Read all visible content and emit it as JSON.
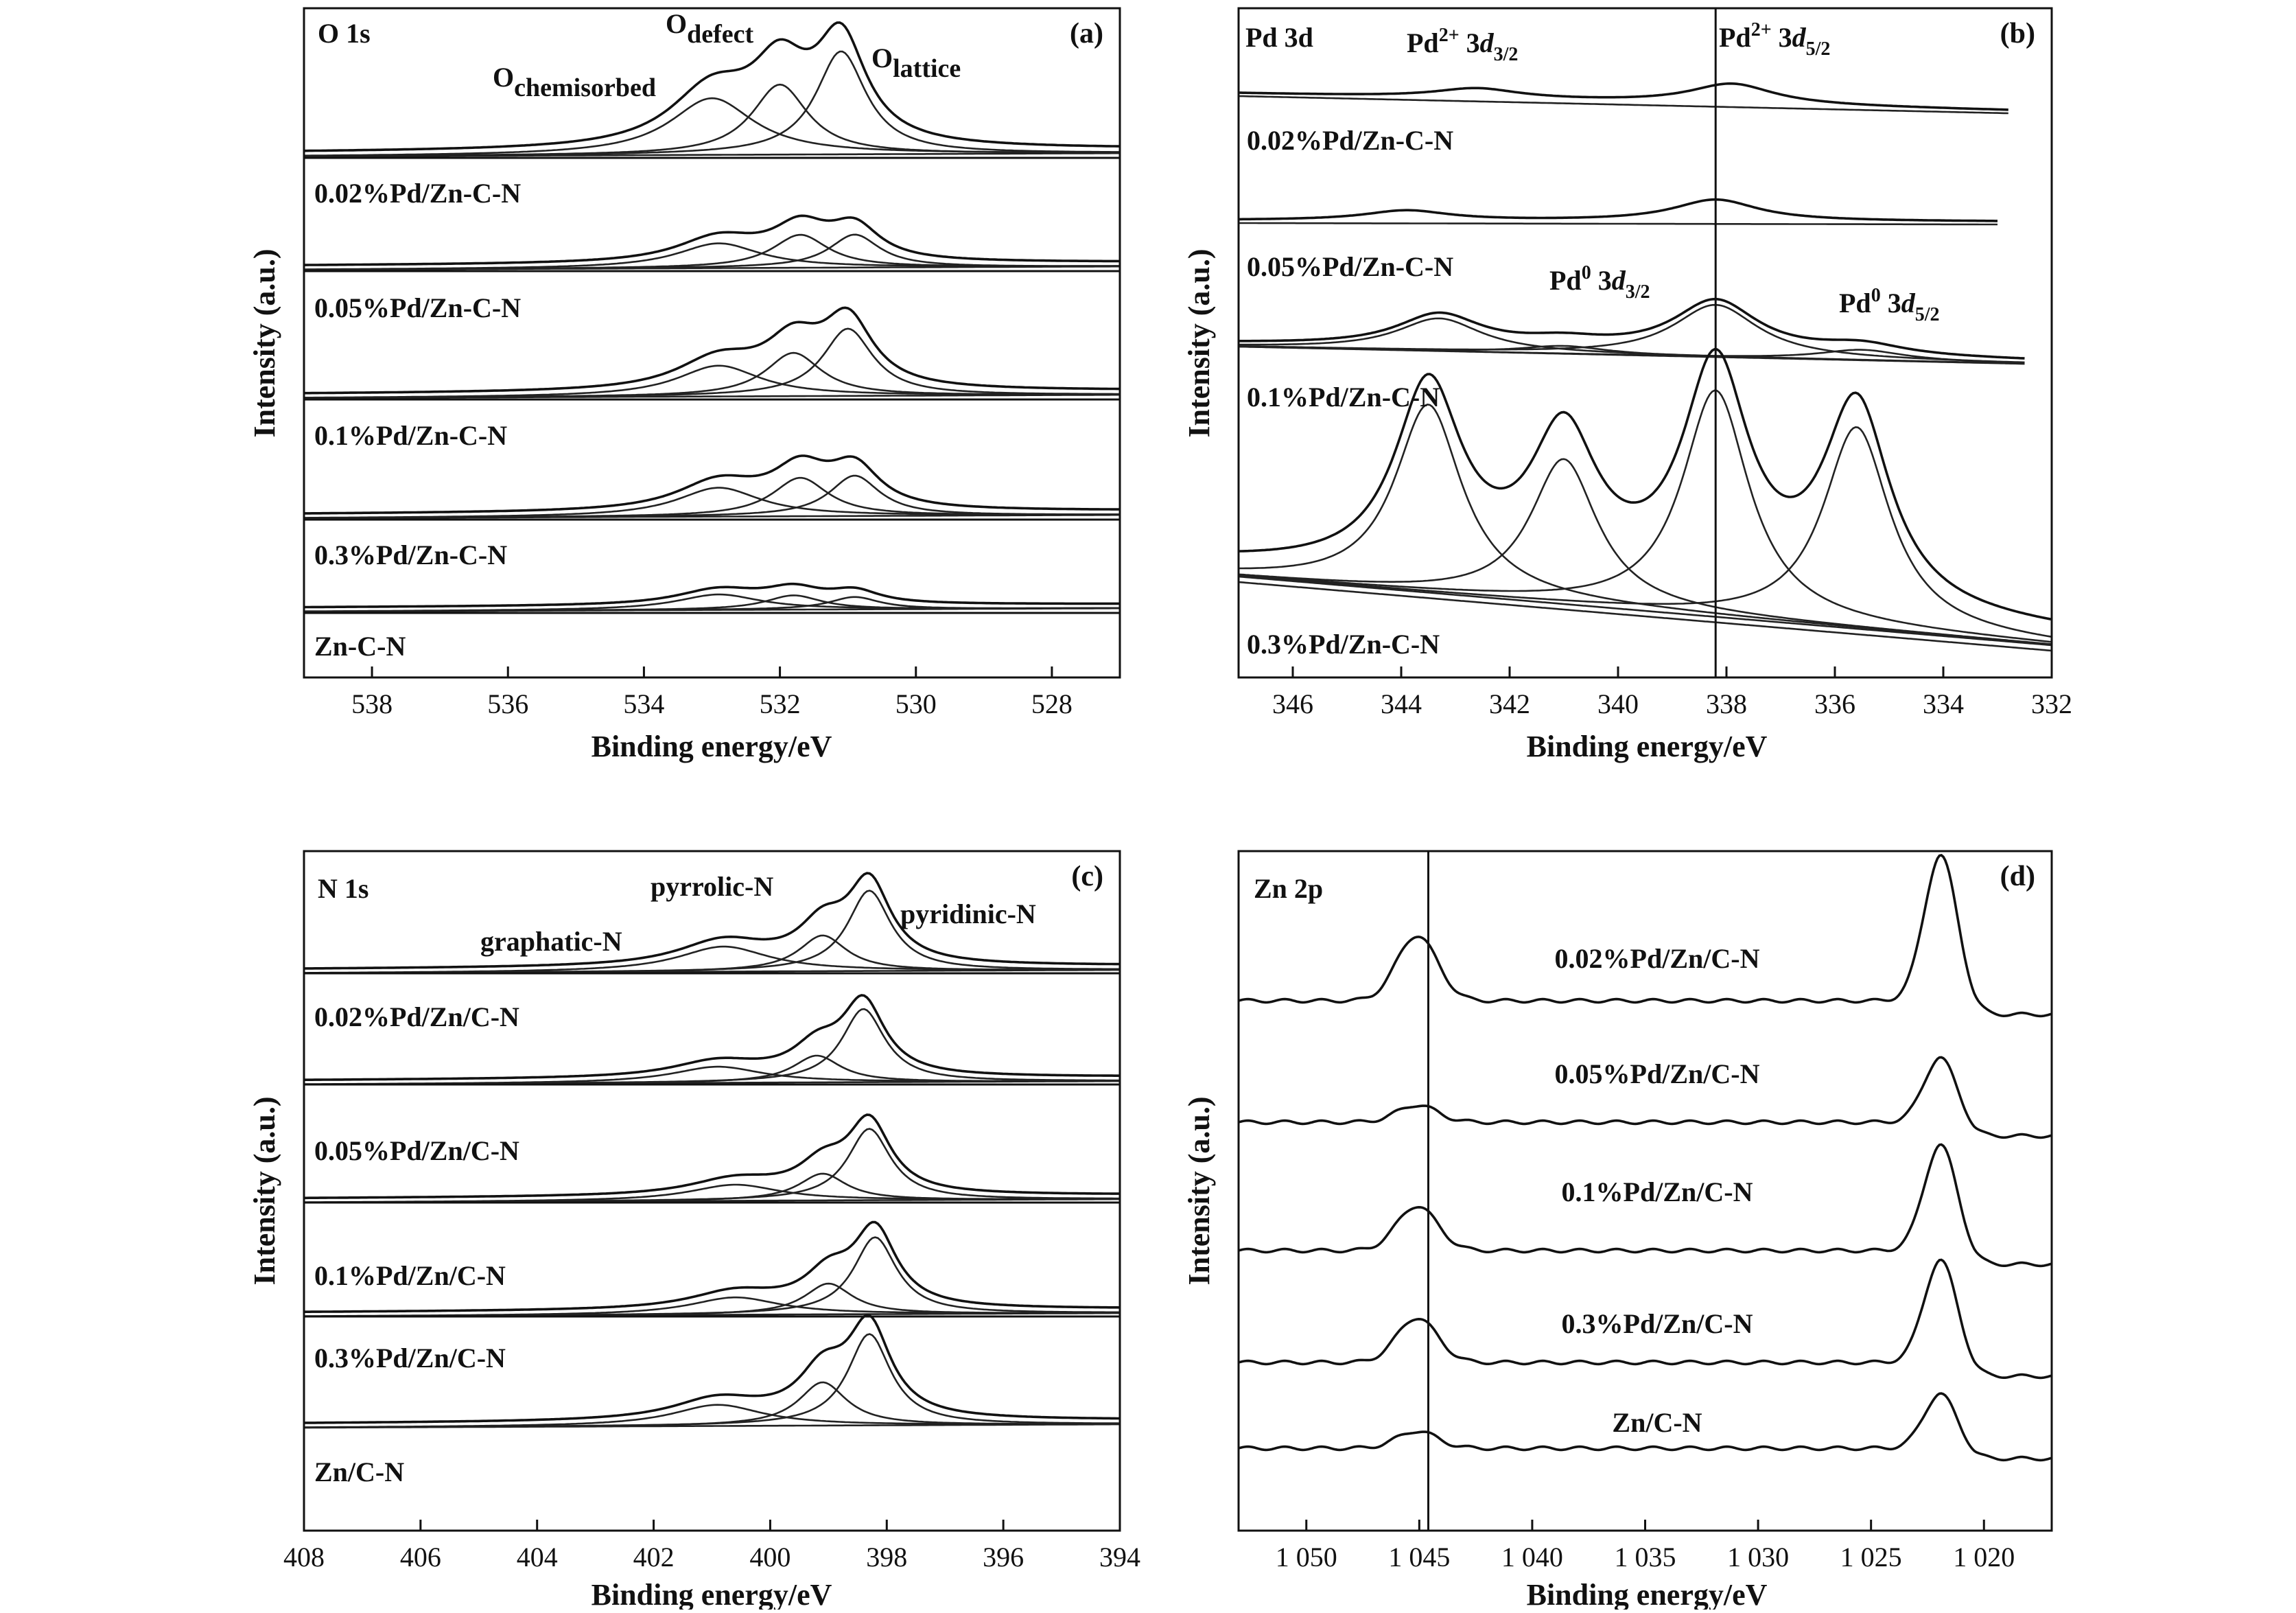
{
  "chart_data": [
    {
      "panel": "(a)",
      "type": "line",
      "label": "O 1s",
      "xlabel": "Binding energy/eV",
      "ylabel": "Intensity (a.u.)",
      "xlim": [
        539,
        527
      ],
      "xticks": [
        "538",
        "536",
        "534",
        "532",
        "530",
        "528"
      ],
      "xtick_values": [
        538,
        536,
        534,
        532,
        530,
        528
      ],
      "peaks": [
        "Ochemisorbed",
        "Odefect",
        "Olattice"
      ],
      "series": [
        {
          "name": "0.02%Pd/Zn-C-N",
          "centers": [
            533.0,
            532.0,
            531.1
          ],
          "amplitudes": [
            0.55,
            0.68,
            1.0
          ]
        },
        {
          "name": "0.05%Pd/Zn-C-N",
          "centers": [
            532.9,
            531.7,
            530.9
          ],
          "amplitudes": [
            0.3,
            0.4,
            0.4
          ]
        },
        {
          "name": "0.1%Pd/Zn-C-N",
          "centers": [
            532.9,
            531.8,
            531.0
          ],
          "amplitudes": [
            0.32,
            0.45,
            0.7
          ]
        },
        {
          "name": "0.3%Pd/Zn-C-N",
          "centers": [
            532.9,
            531.7,
            530.9
          ],
          "amplitudes": [
            0.3,
            0.4,
            0.42
          ]
        },
        {
          "name": "Zn-C-N",
          "centers": [
            532.9,
            531.8,
            530.9
          ],
          "amplitudes": [
            0.25,
            0.23,
            0.2
          ]
        }
      ]
    },
    {
      "panel": "(b)",
      "type": "line",
      "label": "Pd 3d",
      "xlabel": "Binding energy/eV",
      "ylabel": "Intensity (a.u.)",
      "xlim": [
        347,
        332
      ],
      "xticks": [
        "346",
        "344",
        "342",
        "340",
        "338",
        "336",
        "334",
        "332"
      ],
      "xtick_values": [
        346,
        344,
        342,
        340,
        338,
        336,
        334,
        332
      ],
      "reference_line": 338.2,
      "peaks": [
        "Pd2+ 3d3/2",
        "Pd2+ 3d5/2",
        "Pd0 3d3/2",
        "Pd0 3d5/2"
      ],
      "series": [
        {
          "name": "0.02%Pd/Zn-C-N",
          "pd2_32": [
            342.6,
            0.13
          ],
          "pd2_52": [
            337.9,
            0.27
          ]
        },
        {
          "name": "0.05%Pd/Zn-C-N",
          "pd2_32": [
            343.9,
            0.12
          ],
          "pd2_52": [
            338.2,
            0.26
          ]
        },
        {
          "name": "0.1%Pd/Zn-C-N",
          "pd2_32": [
            343.3,
            0.25
          ],
          "pd2_52": [
            338.2,
            0.4
          ],
          "pd0_32": [
            341.0,
            0.06
          ],
          "pd0_52": [
            335.5,
            0.08
          ]
        },
        {
          "name": "0.3%Pd/Zn-C-N",
          "pd2_32": [
            343.5,
            0.83
          ],
          "pd2_52": [
            338.2,
            1.0
          ],
          "pd0_32": [
            341.0,
            0.64
          ],
          "pd0_52": [
            335.6,
            0.89
          ]
        }
      ]
    },
    {
      "panel": "(c)",
      "type": "line",
      "label": "N 1s",
      "xlabel": "Binding energy/eV",
      "ylabel": "Intensity (a.u.)",
      "xlim": [
        408,
        394
      ],
      "xticks": [
        "408",
        "406",
        "404",
        "402",
        "400",
        "398",
        "396",
        "394"
      ],
      "xtick_values": [
        408,
        406,
        404,
        402,
        400,
        398,
        396,
        394
      ],
      "peaks": [
        "graphatic-N",
        "pyrrolic-N",
        "pyridinic-N"
      ],
      "series": [
        {
          "name": "0.02%Pd/Zn/C-N",
          "centers": [
            400.8,
            399.1,
            398.3
          ],
          "amplitudes": [
            0.28,
            0.4,
            0.9
          ]
        },
        {
          "name": "0.05%Pd/Zn/C-N",
          "centers": [
            400.9,
            399.2,
            398.4
          ],
          "amplitudes": [
            0.18,
            0.3,
            0.82
          ]
        },
        {
          "name": "0.1%Pd/Zn/C-N",
          "centers": [
            400.6,
            399.1,
            398.3
          ],
          "amplitudes": [
            0.18,
            0.3,
            0.8
          ]
        },
        {
          "name": "0.3%Pd/Zn/C-N",
          "centers": [
            400.6,
            399.0,
            398.2
          ],
          "amplitudes": [
            0.18,
            0.32,
            0.8
          ]
        },
        {
          "name": "Zn/C-N",
          "centers": [
            400.9,
            399.1,
            398.3
          ],
          "amplitudes": [
            0.22,
            0.45,
            0.95
          ]
        }
      ]
    },
    {
      "panel": "(d)",
      "type": "line",
      "label": "Zn 2p",
      "xlabel": "Binding energy/eV",
      "ylabel": "Intensity (a.u.)",
      "xlim": [
        1053,
        1017
      ],
      "xticks": [
        "1 050",
        "1 045",
        "1 040",
        "1 035",
        "1 030",
        "1 025",
        "1 020"
      ],
      "xtick_values": [
        1050,
        1045,
        1040,
        1035,
        1030,
        1025,
        1020
      ],
      "reference_line": 1044.6,
      "series": [
        {
          "name": "0.02%Pd/Zn/C-N",
          "peak_1045": 0.38,
          "peak_1022": 0.85
        },
        {
          "name": "0.05%Pd/Zn/C-N",
          "peak_1045": 0.1,
          "peak_1022": 0.38
        },
        {
          "name": "0.1%Pd/Zn/C-N",
          "peak_1045": 0.26,
          "peak_1022": 0.62
        },
        {
          "name": "0.3%Pd/Zn/C-N",
          "peak_1045": 0.26,
          "peak_1022": 0.6
        },
        {
          "name": "Zn/C-N",
          "peak_1045": 0.1,
          "peak_1022": 0.32
        }
      ]
    }
  ]
}
